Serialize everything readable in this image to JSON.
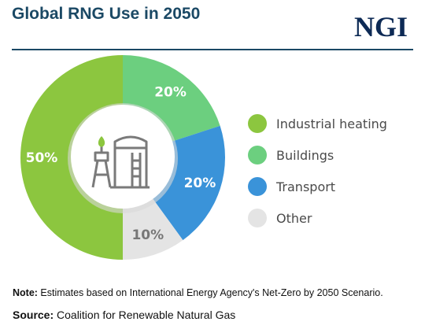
{
  "header": {
    "title": "Global RNG Use in 2050",
    "logo_text": "NGI"
  },
  "chart_data": {
    "type": "pie",
    "style": "donut",
    "title": "Global RNG Use in 2050",
    "legend_position": "right",
    "slices": [
      {
        "label": "Industrial heating",
        "value": 50,
        "display": "50%",
        "color": "#8cc63f",
        "label_color": "#ffffff"
      },
      {
        "label": "Buildings",
        "value": 20,
        "display": "20%",
        "color": "#6ccf7f",
        "label_color": "#ffffff"
      },
      {
        "label": "Transport",
        "value": 20,
        "display": "20%",
        "color": "#3a93d9",
        "label_color": "#ffffff"
      },
      {
        "label": "Other",
        "value": 10,
        "display": "10%",
        "color": "#e4e4e4",
        "label_color": "#777777"
      }
    ],
    "center_icon": "rng-facility-icon"
  },
  "footer": {
    "note_label": "Note:",
    "note_text": " Estimates based on International Energy Agency's Net-Zero by 2050 Scenario.",
    "source_label": "Source:",
    "source_text": " Coalition for Renewable Natural Gas"
  }
}
